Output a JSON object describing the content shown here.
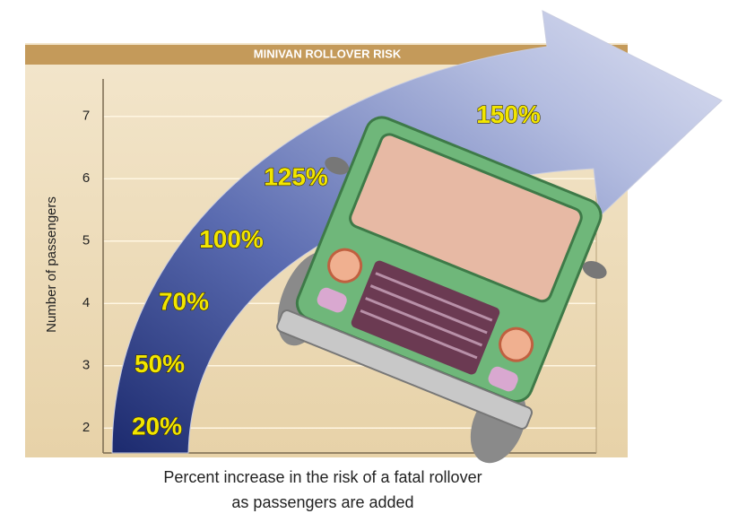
{
  "chart_data": {
    "type": "arrow",
    "title": "MINIVAN ROLLOVER RISK",
    "y_label": "Number of passengers",
    "caption": [
      "Percent increase in the risk of a fatal rollover",
      "as passengers are added"
    ],
    "y": [
      2,
      3,
      4,
      5,
      6,
      7
    ],
    "values": [
      20,
      50,
      70,
      100,
      125,
      150
    ],
    "value_labels": [
      "20%",
      "50%",
      "70%",
      "100%",
      "125%",
      "150%"
    ],
    "ylim": [
      1.6,
      7.6
    ],
    "yticks": [
      2,
      3,
      4,
      5,
      6,
      7
    ],
    "grid": true,
    "label_color": "#f2e600"
  }
}
